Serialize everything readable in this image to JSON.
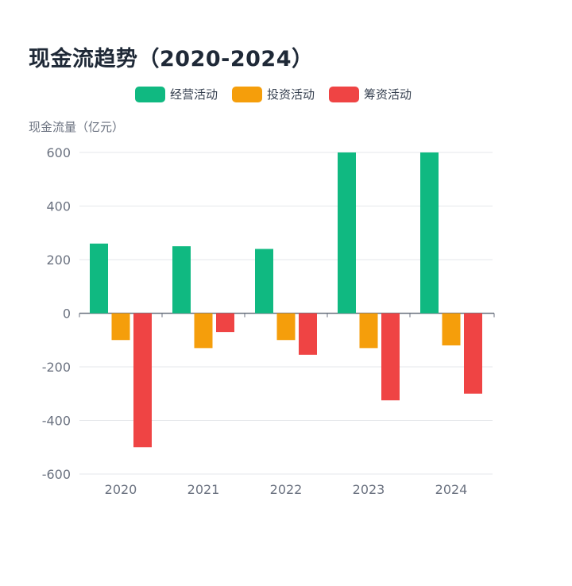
{
  "chart_data": {
    "type": "bar",
    "title": "现金流趋势（2020-2024）",
    "ylabel": "现金流量（亿元）",
    "xlabel": "",
    "categories": [
      "2020",
      "2021",
      "2022",
      "2023",
      "2024"
    ],
    "series": [
      {
        "name": "经营活动",
        "color": "#10b981",
        "values": [
          260,
          250,
          240,
          600,
          600
        ]
      },
      {
        "name": "投资活动",
        "color": "#f59e0b",
        "values": [
          -100,
          -130,
          -100,
          -130,
          -120
        ]
      },
      {
        "name": "筹资活动",
        "color": "#ef4444",
        "values": [
          -500,
          -70,
          -155,
          -325,
          -300
        ]
      }
    ],
    "ylim": [
      -600,
      600
    ],
    "yticks": [
      "600",
      "400",
      "200",
      "0",
      "-200",
      "-400",
      "-600"
    ],
    "grid": true,
    "legend_position": "top"
  }
}
